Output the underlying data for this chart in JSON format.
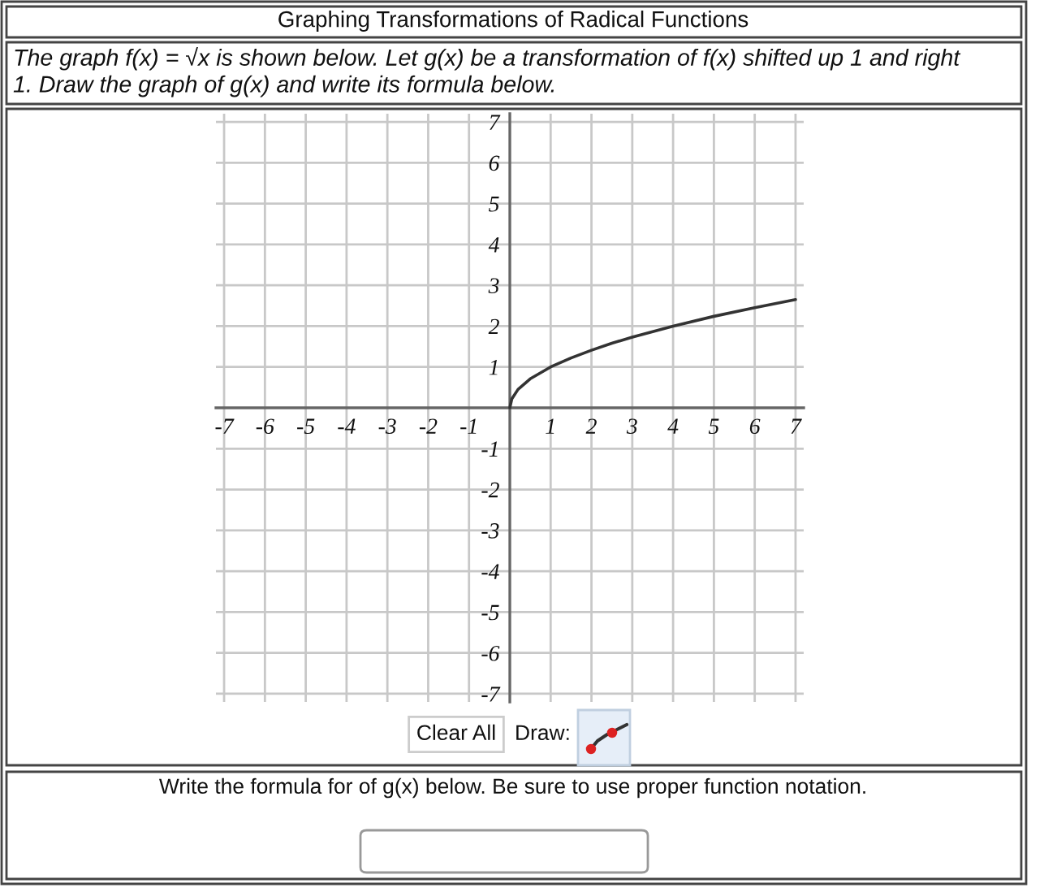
{
  "chart_data": {
    "type": "line",
    "title": "Graphing Transformations of Radical Functions",
    "subtitle": "The graph f(x) = √x is shown below. Let g(x) be a transformation of f(x) shifted up 1 and right 1. Draw the graph of g(x) and write its formula below.",
    "annotations": [
      "Clear All",
      "Draw:",
      "Write the formula for of g(x) below. Be sure to use proper function notation."
    ],
    "series": [
      {
        "color": "#333333",
        "x": [
          0,
          0.05,
          0.2,
          0.5,
          1,
          1.5,
          2,
          2.5,
          3,
          4,
          5,
          6,
          7
        ],
        "values": [
          0,
          0.22,
          0.45,
          0.71,
          1,
          1.22,
          1.41,
          1.58,
          1.73,
          2,
          2.24,
          2.45,
          2.65
        ]
      }
    ],
    "xlim": [
      -7.2,
      7.2
    ],
    "ylim": [
      -7.2,
      7.2
    ],
    "xticks": [
      -7,
      -6,
      -5,
      -4,
      -3,
      -2,
      -1,
      1,
      2,
      3,
      4,
      5,
      6,
      7
    ],
    "yticks": [
      -7,
      -6,
      -5,
      -4,
      -3,
      -2,
      -1,
      1,
      2,
      3,
      4,
      5,
      6,
      7
    ],
    "grid": true
  }
}
